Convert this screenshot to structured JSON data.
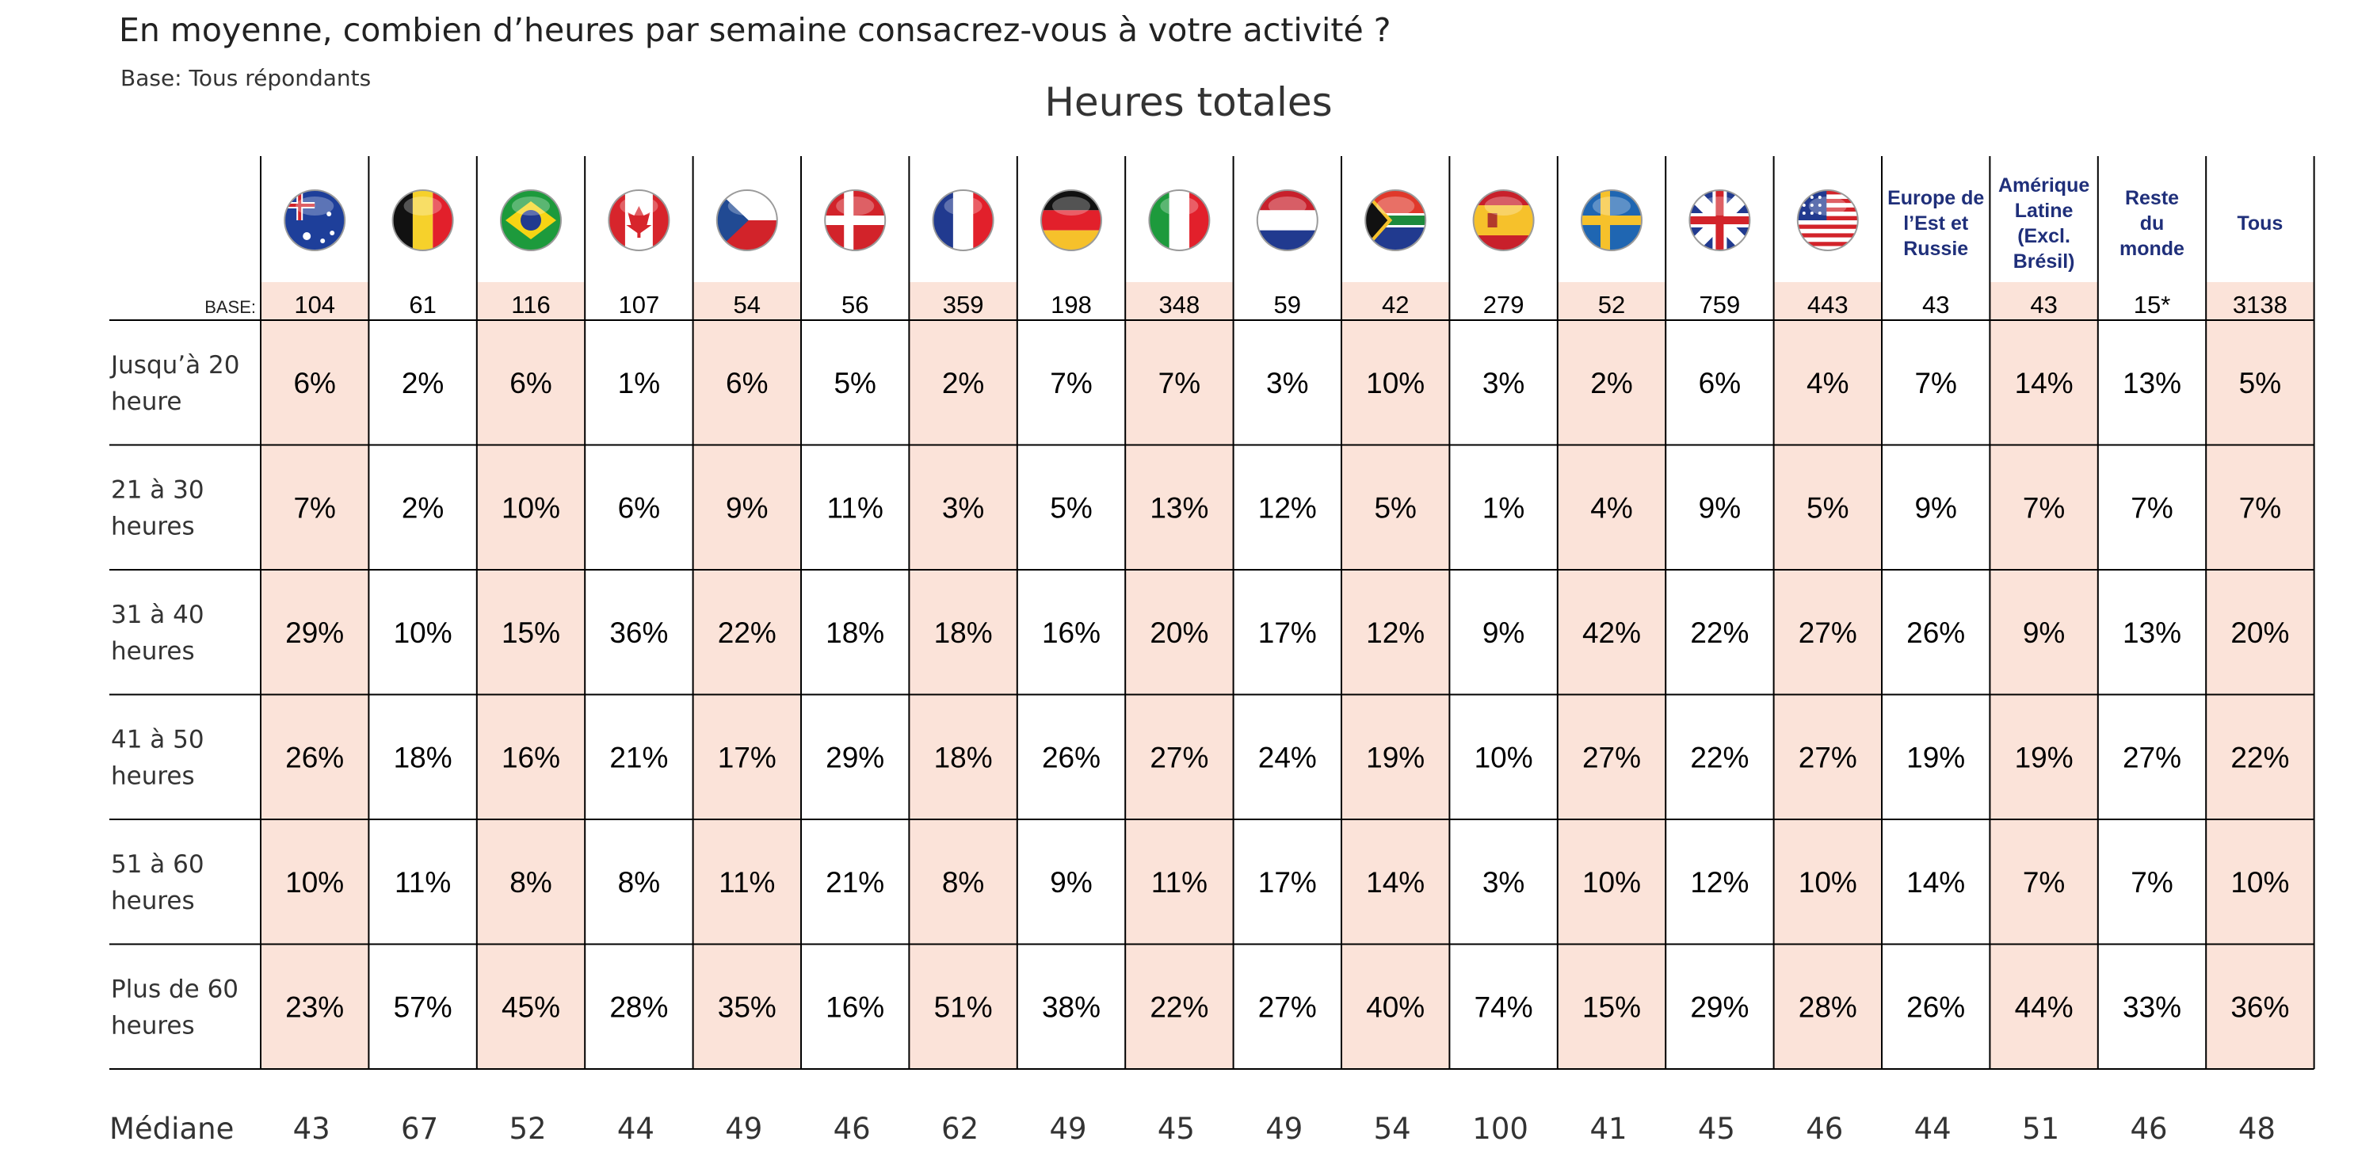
{
  "header": {
    "question": "En moyenne, combien d’heures par semaine consacrez-vous à votre activité ?",
    "base_note": "Base: Tous répondants"
  },
  "colors": {
    "highlight": "#fbe3d9",
    "grid": "#000000",
    "region_label": "#1f2f7a"
  },
  "chart_data": {
    "type": "table",
    "title": "Heures totales",
    "base_label": "BASE:",
    "median_label": "Médiane",
    "columns": [
      {
        "flag": "australia-flag-icon",
        "label": "",
        "base": "104",
        "highlight": true,
        "values": [
          "6%",
          "7%",
          "29%",
          "26%",
          "10%",
          "23%"
        ],
        "median": "43"
      },
      {
        "flag": "belgium-flag-icon",
        "label": "",
        "base": "61",
        "highlight": false,
        "values": [
          "2%",
          "2%",
          "10%",
          "18%",
          "11%",
          "57%"
        ],
        "median": "67"
      },
      {
        "flag": "brazil-flag-icon",
        "label": "",
        "base": "116",
        "highlight": true,
        "values": [
          "6%",
          "10%",
          "15%",
          "16%",
          "8%",
          "45%"
        ],
        "median": "52"
      },
      {
        "flag": "canada-flag-icon",
        "label": "",
        "base": "107",
        "highlight": false,
        "values": [
          "1%",
          "6%",
          "36%",
          "21%",
          "8%",
          "28%"
        ],
        "median": "44"
      },
      {
        "flag": "czech-flag-icon",
        "label": "",
        "base": "54",
        "highlight": true,
        "values": [
          "6%",
          "9%",
          "22%",
          "17%",
          "11%",
          "35%"
        ],
        "median": "49"
      },
      {
        "flag": "denmark-flag-icon",
        "label": "",
        "base": "56",
        "highlight": false,
        "values": [
          "5%",
          "11%",
          "18%",
          "29%",
          "21%",
          "16%"
        ],
        "median": "46"
      },
      {
        "flag": "france-flag-icon",
        "label": "",
        "base": "359",
        "highlight": true,
        "values": [
          "2%",
          "3%",
          "18%",
          "18%",
          "8%",
          "51%"
        ],
        "median": "62"
      },
      {
        "flag": "germany-flag-icon",
        "label": "",
        "base": "198",
        "highlight": false,
        "values": [
          "7%",
          "5%",
          "16%",
          "26%",
          "9%",
          "38%"
        ],
        "median": "49"
      },
      {
        "flag": "italy-flag-icon",
        "label": "",
        "base": "348",
        "highlight": true,
        "values": [
          "7%",
          "13%",
          "20%",
          "27%",
          "11%",
          "22%"
        ],
        "median": "45"
      },
      {
        "flag": "netherlands-flag-icon",
        "label": "",
        "base": "59",
        "highlight": false,
        "values": [
          "3%",
          "12%",
          "17%",
          "24%",
          "17%",
          "27%"
        ],
        "median": "49"
      },
      {
        "flag": "south-africa-flag-icon",
        "label": "",
        "base": "42",
        "highlight": true,
        "values": [
          "10%",
          "5%",
          "12%",
          "19%",
          "14%",
          "40%"
        ],
        "median": "54"
      },
      {
        "flag": "spain-flag-icon",
        "label": "",
        "base": "279",
        "highlight": false,
        "values": [
          "3%",
          "1%",
          "9%",
          "10%",
          "3%",
          "74%"
        ],
        "median": "100"
      },
      {
        "flag": "sweden-flag-icon",
        "label": "",
        "base": "52",
        "highlight": true,
        "values": [
          "2%",
          "4%",
          "42%",
          "27%",
          "10%",
          "15%"
        ],
        "median": "41"
      },
      {
        "flag": "uk-flag-icon",
        "label": "",
        "base": "759",
        "highlight": false,
        "values": [
          "6%",
          "9%",
          "22%",
          "22%",
          "12%",
          "29%"
        ],
        "median": "45"
      },
      {
        "flag": "usa-flag-icon",
        "label": "",
        "base": "443",
        "highlight": true,
        "values": [
          "4%",
          "5%",
          "27%",
          "27%",
          "10%",
          "28%"
        ],
        "median": "46"
      },
      {
        "flag": "",
        "label": [
          "Europe de",
          "l’Est et",
          "Russie"
        ],
        "base": "43",
        "highlight": false,
        "values": [
          "7%",
          "9%",
          "26%",
          "19%",
          "14%",
          "26%"
        ],
        "median": "44"
      },
      {
        "flag": "",
        "label": [
          "Amérique",
          "Latine",
          "(Excl.",
          "Brésil)"
        ],
        "base": "43",
        "highlight": true,
        "values": [
          "14%",
          "7%",
          "9%",
          "19%",
          "7%",
          "44%"
        ],
        "median": "51"
      },
      {
        "flag": "",
        "label": [
          "Reste",
          "du",
          "monde"
        ],
        "base": "15*",
        "highlight": false,
        "values": [
          "13%",
          "7%",
          "13%",
          "27%",
          "7%",
          "33%"
        ],
        "median": "46"
      },
      {
        "flag": "",
        "label": [
          "Tous"
        ],
        "base": "3138",
        "highlight": true,
        "values": [
          "5%",
          "7%",
          "20%",
          "22%",
          "10%",
          "36%"
        ],
        "median": "48"
      }
    ],
    "rows": [
      [
        "Jusqu’à 20",
        "heure"
      ],
      [
        "21 à 30",
        "heures"
      ],
      [
        "31 à 40",
        "heures"
      ],
      [
        "41 à 50",
        "heures"
      ],
      [
        "51 à 60",
        "heures"
      ],
      [
        "Plus de 60",
        "heures"
      ]
    ]
  }
}
